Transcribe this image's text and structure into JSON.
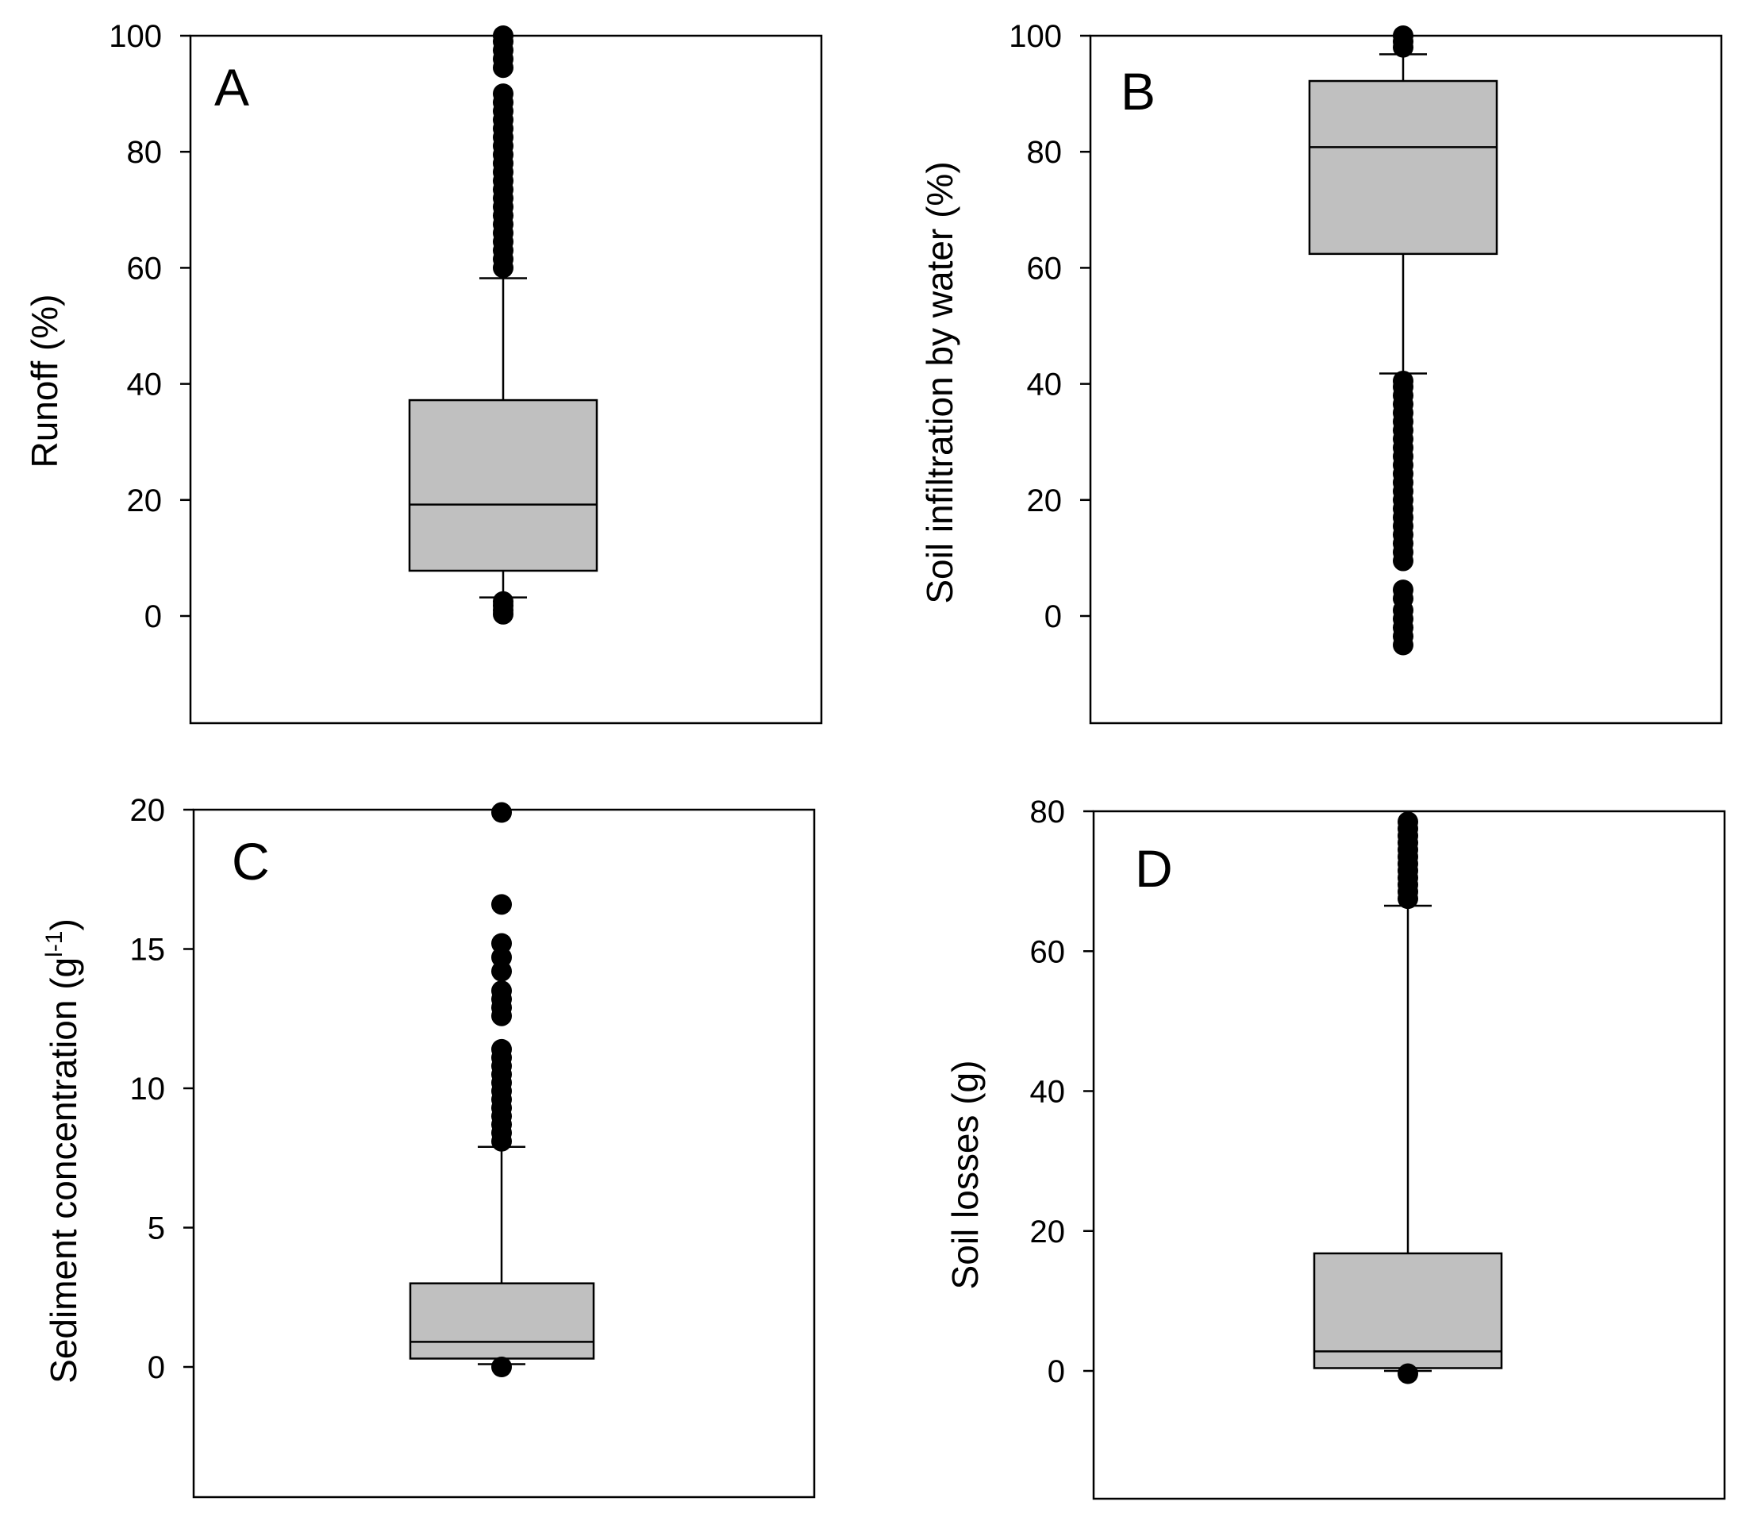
{
  "chart_data": [
    {
      "type": "box",
      "panel_label": "A",
      "ylabel": "Runoff (%)",
      "ylim": [
        -18,
        100
      ],
      "yticks": [
        0,
        20,
        40,
        60,
        80,
        100
      ],
      "ytick_labels": [
        "0",
        "20",
        "40",
        "60",
        "80",
        "100"
      ],
      "box": {
        "q1": 7.8,
        "median": 19.2,
        "q3": 37.2,
        "whisker_low": 3.2,
        "whisker_high": 58.2
      },
      "outliers": [
        0.3,
        1.0,
        1.8,
        2.5,
        60.0,
        61.5,
        63.0,
        64.5,
        66.0,
        67.5,
        69.0,
        70.5,
        72.0,
        73.5,
        75.0,
        76.5,
        78.0,
        79.5,
        81.0,
        82.5,
        84.0,
        85.5,
        87.0,
        88.5,
        90.0,
        94.5,
        96.0,
        97.5,
        99.0,
        100.0
      ]
    },
    {
      "type": "box",
      "panel_label": "B",
      "ylabel": "Soil infiltration by water (%)",
      "ylim": [
        -18,
        100
      ],
      "yticks": [
        0,
        20,
        40,
        60,
        80,
        100
      ],
      "ytick_labels": [
        "0",
        "20",
        "40",
        "60",
        "80",
        "100"
      ],
      "box": {
        "q1": 62.4,
        "median": 80.8,
        "q3": 92.2,
        "whisker_low": 41.8,
        "whisker_high": 96.8
      },
      "outliers": [
        -5.0,
        -3.5,
        -2.0,
        -0.5,
        1.0,
        3.0,
        4.5,
        9.5,
        11.0,
        12.5,
        14.0,
        15.5,
        17.0,
        18.5,
        20.0,
        21.5,
        23.0,
        24.5,
        26.0,
        27.5,
        29.0,
        30.5,
        32.0,
        33.5,
        35.0,
        36.5,
        38.0,
        39.5,
        40.5,
        98.0,
        99.0,
        100.0
      ]
    },
    {
      "type": "box",
      "panel_label": "C",
      "ylabel": "Sediment concentration (g",
      "ylabel_sup": "l-1",
      "ylabel_end": ")",
      "ylim": [
        -4.5,
        20
      ],
      "yticks": [
        0,
        5,
        10,
        15,
        20
      ],
      "ytick_labels": [
        "0",
        "5",
        "10",
        "15",
        "20"
      ],
      "box": {
        "q1": 0.3,
        "median": 0.9,
        "q3": 3.0,
        "whisker_low": 0.1,
        "whisker_high": 7.9
      },
      "outliers": [
        0.0,
        8.1,
        8.4,
        8.7,
        9.0,
        9.3,
        9.6,
        9.9,
        10.2,
        10.5,
        10.8,
        11.1,
        11.4,
        12.6,
        12.9,
        13.2,
        13.5,
        14.2,
        14.7,
        15.2,
        16.6,
        19.9
      ]
    },
    {
      "type": "box",
      "panel_label": "D",
      "ylabel": "Soil losses (g)",
      "ylim": [
        -18,
        80
      ],
      "yticks": [
        0,
        20,
        40,
        60,
        80
      ],
      "ytick_labels": [
        "0",
        "20",
        "40",
        "60",
        "80"
      ],
      "box": {
        "q1": 0.4,
        "median": 2.8,
        "q3": 16.8,
        "whisker_low": 0.0,
        "whisker_high": 66.5
      },
      "outliers": [
        -0.4,
        67.5,
        68.5,
        69.5,
        70.5,
        71.5,
        72.5,
        73.5,
        74.5,
        75.5,
        76.5,
        77.5,
        78.5
      ]
    }
  ]
}
